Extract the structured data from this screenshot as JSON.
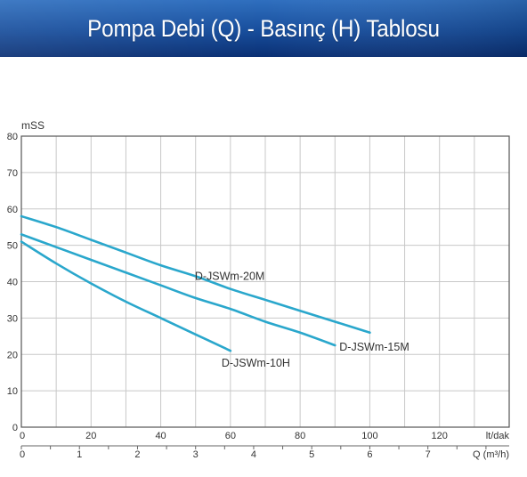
{
  "header": {
    "title": "Pompa Debi (Q) - Basınç (H) Tablosu",
    "gradient_dark": "#0a2f73",
    "gradient_light": "#2f6fbf"
  },
  "chart_data": {
    "type": "line",
    "ylabel": "mSS",
    "ylim": [
      0,
      80
    ],
    "yticks": [
      0,
      10,
      20,
      30,
      40,
      50,
      60,
      70,
      80
    ],
    "x_primary": {
      "unit": "lt/dak",
      "range": [
        0,
        140
      ],
      "ticks": [
        0,
        20,
        40,
        60,
        80,
        100,
        120
      ]
    },
    "x_secondary": {
      "unit": "Q (m³/h)",
      "range": [
        0,
        8.4
      ],
      "ticks": [
        0,
        1,
        2,
        3,
        4,
        5,
        6,
        7
      ]
    },
    "grid": true,
    "line_color": "#2aa7cc",
    "series": [
      {
        "name": "D-JSWm-20M",
        "points": [
          [
            0,
            58
          ],
          [
            10,
            55
          ],
          [
            20,
            51.5
          ],
          [
            30,
            48
          ],
          [
            40,
            44.5
          ],
          [
            50,
            41.5
          ],
          [
            60,
            38
          ],
          [
            70,
            35
          ],
          [
            80,
            32
          ],
          [
            90,
            29
          ],
          [
            100,
            26
          ]
        ]
      },
      {
        "name": "D-JSWm-15M",
        "points": [
          [
            0,
            53
          ],
          [
            10,
            49.5
          ],
          [
            20,
            46
          ],
          [
            30,
            42.5
          ],
          [
            40,
            39
          ],
          [
            50,
            35.5
          ],
          [
            60,
            32.5
          ],
          [
            70,
            29
          ],
          [
            80,
            26
          ],
          [
            90,
            22.5
          ]
        ]
      },
      {
        "name": "D-JSWm-10H",
        "points": [
          [
            0,
            51
          ],
          [
            10,
            45
          ],
          [
            20,
            39.5
          ],
          [
            30,
            34.5
          ],
          [
            40,
            30
          ],
          [
            50,
            25.5
          ],
          [
            60,
            21
          ]
        ]
      }
    ]
  }
}
